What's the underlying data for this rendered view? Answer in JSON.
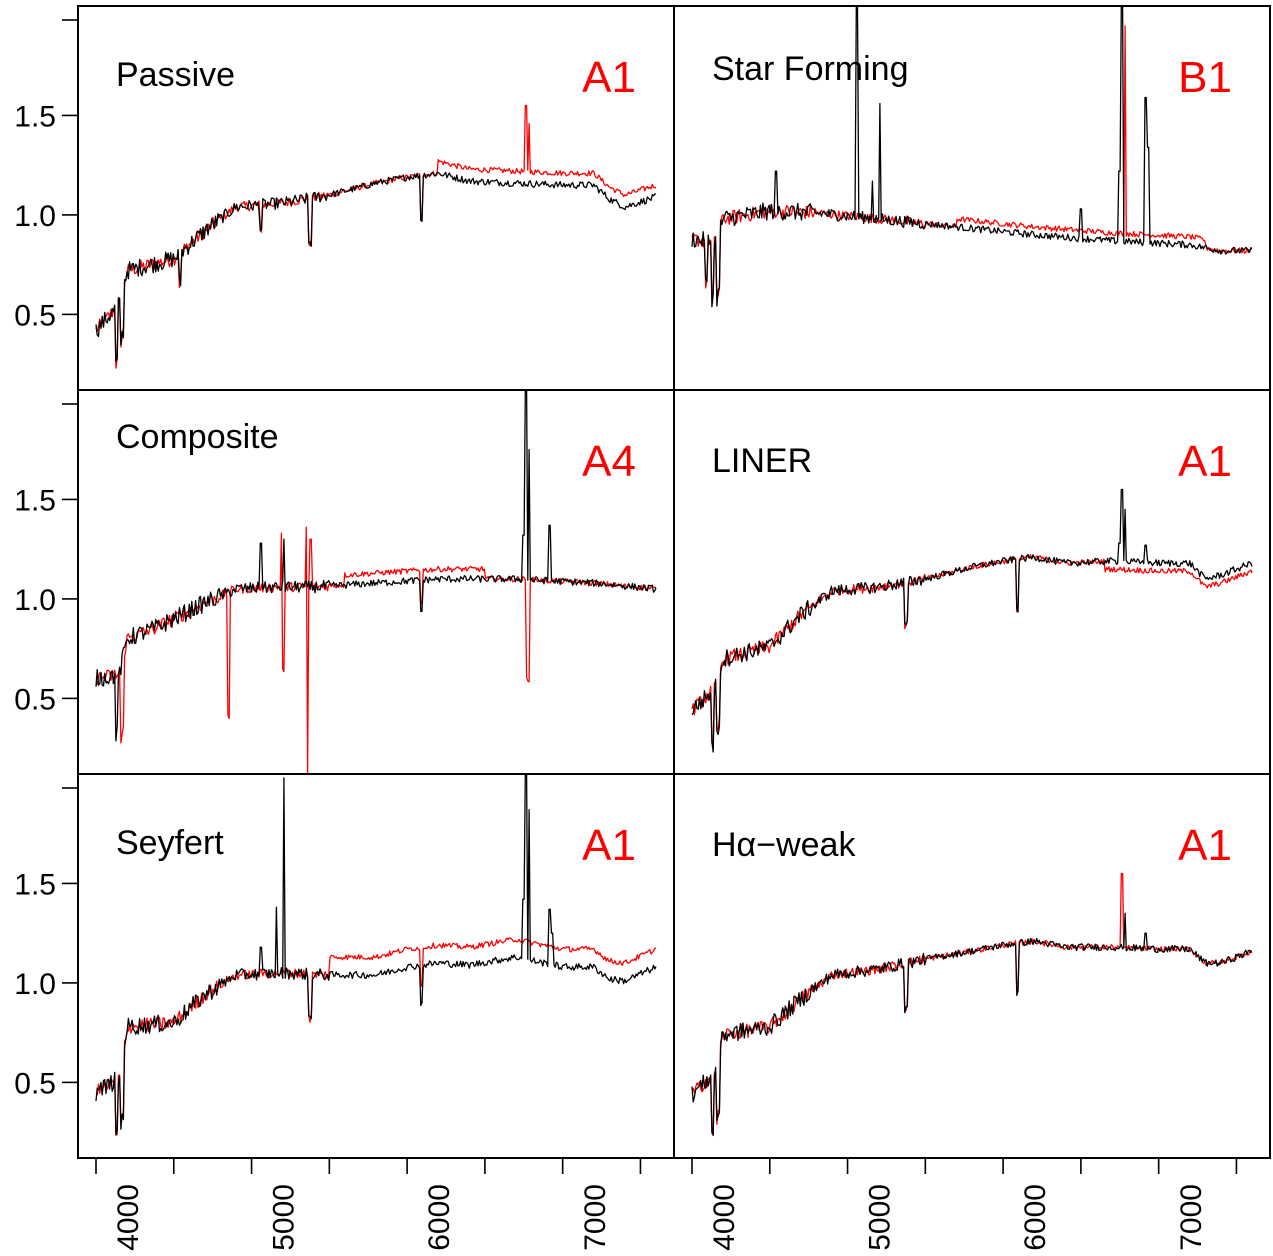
{
  "colors": {
    "model": "#ff0000",
    "observed": "#000000",
    "label_accent": "#ff0000",
    "axis": "#000000"
  },
  "x_ticks": [
    4000,
    5000,
    6000,
    7000
  ],
  "y_ticks": [
    "0.5",
    "1.0",
    "1.5"
  ],
  "chart_data": [
    {
      "type": "line",
      "title": "Passive",
      "tag": "A1",
      "xlim": [
        3800,
        7400
      ],
      "ylim": [
        0.12,
        2.05
      ],
      "continuum": {
        "x": [
          3800,
          3950,
          4000,
          4300,
          4500,
          4700,
          5000,
          5300,
          5600,
          5800,
          6000,
          6200,
          6500,
          6800,
          7000,
          7100,
          7200,
          7400
        ],
        "y": [
          0.42,
          0.55,
          0.72,
          0.78,
          0.92,
          1.04,
          1.06,
          1.1,
          1.16,
          1.19,
          1.21,
          1.17,
          1.16,
          1.15,
          1.15,
          1.08,
          1.04,
          1.09
        ]
      },
      "model_offset": [
        [
          6000,
          7400,
          0.06
        ]
      ],
      "lines": [
        {
          "x": 6563,
          "y": 1.55,
          "c": "model"
        },
        {
          "x": 6585,
          "y": 1.46,
          "c": "model"
        }
      ],
      "dips": [
        {
          "x": 3934,
          "d": 0.28
        },
        {
          "x": 3969,
          "d": 0.22
        },
        {
          "x": 4340,
          "d": 0.15
        },
        {
          "x": 4861,
          "d": 0.12
        },
        {
          "x": 5175,
          "d": 0.22
        },
        {
          "x": 5890,
          "d": 0.22
        }
      ]
    },
    {
      "type": "line",
      "title": "Star Forming",
      "tag": "B1",
      "xlim": [
        3800,
        7400
      ],
      "ylim": [
        0.12,
        2.05
      ],
      "continuum": {
        "x": [
          3800,
          3950,
          4000,
          4300,
          4600,
          5000,
          5500,
          6000,
          6500,
          7000,
          7200,
          7400
        ],
        "y": [
          0.88,
          0.86,
          0.98,
          1.02,
          1.01,
          0.98,
          0.94,
          0.9,
          0.87,
          0.85,
          0.82,
          0.82
        ]
      },
      "model_offset": [
        [
          5500,
          7100,
          0.04
        ]
      ],
      "lines": [
        {
          "x": 4340,
          "y": 1.22,
          "c": "observed"
        },
        {
          "x": 4861,
          "y": 2.05,
          "c": "observed"
        },
        {
          "x": 4959,
          "y": 1.17,
          "c": "observed"
        },
        {
          "x": 5007,
          "y": 1.56,
          "c": "observed"
        },
        {
          "x": 6300,
          "y": 1.03,
          "c": "observed"
        },
        {
          "x": 6548,
          "y": 1.22,
          "c": "observed"
        },
        {
          "x": 6563,
          "y": 2.05,
          "c": "observed"
        },
        {
          "x": 6583,
          "y": 1.95,
          "c": "model"
        },
        {
          "x": 6716,
          "y": 1.59,
          "c": "observed"
        },
        {
          "x": 6731,
          "y": 1.34,
          "c": "observed"
        }
      ],
      "dips": [
        {
          "x": 3890,
          "d": 0.22
        },
        {
          "x": 3934,
          "d": 0.28
        },
        {
          "x": 3969,
          "d": 0.3
        }
      ]
    },
    {
      "type": "line",
      "title": "Composite",
      "tag": "A4",
      "xlim": [
        3800,
        7400
      ],
      "ylim": [
        0.12,
        2.05
      ],
      "continuum": {
        "x": [
          3800,
          3950,
          4000,
          4200,
          4500,
          4700,
          5000,
          5200,
          5600,
          6000,
          6500,
          7000,
          7400
        ],
        "y": [
          0.6,
          0.62,
          0.8,
          0.86,
          0.98,
          1.05,
          1.06,
          1.06,
          1.08,
          1.1,
          1.1,
          1.08,
          1.05
        ]
      },
      "model_offset": [
        [
          5400,
          6300,
          0.05
        ]
      ],
      "lines": [
        {
          "x": 4861,
          "y": 1.28,
          "c": "observed"
        },
        {
          "x": 4990,
          "y": 1.33,
          "c": "model"
        },
        {
          "x": 5007,
          "y": 1.3,
          "c": "observed"
        },
        {
          "x": 5150,
          "y": 1.36,
          "c": "model"
        },
        {
          "x": 5180,
          "y": 1.3,
          "c": "model"
        },
        {
          "x": 6548,
          "y": 1.32,
          "c": "observed"
        },
        {
          "x": 6563,
          "y": 2.05,
          "c": "observed"
        },
        {
          "x": 6583,
          "y": 1.75,
          "c": "observed"
        },
        {
          "x": 6716,
          "y": 1.37,
          "c": "observed"
        }
      ],
      "dips": [
        {
          "x": 3934,
          "d": 0.3,
          "c": "observed"
        },
        {
          "x": 3969,
          "d": 0.38,
          "c": "model"
        },
        {
          "x": 4650,
          "d": 0.62,
          "c": "model"
        },
        {
          "x": 5000,
          "d": 0.42,
          "c": "model"
        },
        {
          "x": 5155,
          "d": 0.95,
          "c": "model"
        },
        {
          "x": 5180,
          "d": 0.88,
          "c": "model"
        },
        {
          "x": 5890,
          "d": 0.16
        },
        {
          "x": 6575,
          "d": 0.5,
          "c": "model"
        }
      ]
    },
    {
      "type": "line",
      "title": "LINER",
      "tag": "A1",
      "xlim": [
        3800,
        7400
      ],
      "ylim": [
        0.12,
        2.05
      ],
      "continuum": {
        "x": [
          3800,
          3950,
          4000,
          4300,
          4500,
          4700,
          5000,
          5300,
          5600,
          5800,
          6000,
          6200,
          6500,
          6800,
          7000,
          7100,
          7200,
          7400
        ],
        "y": [
          0.44,
          0.55,
          0.7,
          0.76,
          0.92,
          1.04,
          1.06,
          1.1,
          1.16,
          1.19,
          1.21,
          1.18,
          1.19,
          1.18,
          1.18,
          1.1,
          1.12,
          1.18
        ]
      },
      "model_offset": [
        [
          6450,
          7400,
          -0.04
        ]
      ],
      "lines": [
        {
          "x": 6548,
          "y": 1.28,
          "c": "observed"
        },
        {
          "x": 6563,
          "y": 1.55,
          "c": "observed"
        },
        {
          "x": 6583,
          "y": 1.45,
          "c": "observed"
        },
        {
          "x": 6716,
          "y": 1.27,
          "c": "observed"
        }
      ],
      "dips": [
        {
          "x": 3934,
          "d": 0.28
        },
        {
          "x": 3969,
          "d": 0.25
        },
        {
          "x": 5175,
          "d": 0.22
        },
        {
          "x": 5890,
          "d": 0.25
        }
      ]
    },
    {
      "type": "line",
      "title": "Seyfert",
      "tag": "A1",
      "xlim": [
        3800,
        7400
      ],
      "ylim": [
        0.12,
        2.05
      ],
      "continuum": {
        "x": [
          3800,
          3950,
          4000,
          4300,
          4500,
          4700,
          5000,
          5300,
          5600,
          5800,
          6000,
          6200,
          6500,
          6800,
          7000,
          7100,
          7200,
          7400
        ],
        "y": [
          0.45,
          0.52,
          0.78,
          0.8,
          0.94,
          1.04,
          1.05,
          1.04,
          1.04,
          1.08,
          1.1,
          1.09,
          1.13,
          1.08,
          1.08,
          1.02,
          1.01,
          1.08
        ]
      },
      "model_offset": [
        [
          5300,
          7400,
          0.09
        ]
      ],
      "lines": [
        {
          "x": 4861,
          "y": 1.18,
          "c": "observed"
        },
        {
          "x": 4959,
          "y": 1.38,
          "c": "observed"
        },
        {
          "x": 5007,
          "y": 2.03,
          "c": "observed"
        },
        {
          "x": 6548,
          "y": 1.42,
          "c": "observed"
        },
        {
          "x": 6563,
          "y": 2.05,
          "c": "observed"
        },
        {
          "x": 6583,
          "y": 1.87,
          "c": "observed"
        },
        {
          "x": 6716,
          "y": 1.37,
          "c": "observed"
        },
        {
          "x": 6731,
          "y": 1.25,
          "c": "observed"
        }
      ],
      "dips": [
        {
          "x": 3934,
          "d": 0.28
        },
        {
          "x": 3969,
          "d": 0.3
        },
        {
          "x": 5175,
          "d": 0.22
        },
        {
          "x": 5890,
          "d": 0.2
        }
      ]
    },
    {
      "type": "line",
      "title": "Hα−weak",
      "tag": "A1",
      "xlim": [
        3800,
        7400
      ],
      "ylim": [
        0.12,
        2.05
      ],
      "continuum": {
        "x": [
          3800,
          3950,
          4000,
          4300,
          4500,
          4700,
          5000,
          5300,
          5600,
          5800,
          6000,
          6200,
          6500,
          6800,
          7000,
          7100,
          7200,
          7400
        ],
        "y": [
          0.44,
          0.55,
          0.74,
          0.78,
          0.92,
          1.04,
          1.07,
          1.12,
          1.16,
          1.19,
          1.21,
          1.18,
          1.18,
          1.17,
          1.17,
          1.1,
          1.1,
          1.16
        ]
      },
      "model_offset": [],
      "lines": [
        {
          "x": 6563,
          "y": 1.55,
          "c": "model"
        },
        {
          "x": 6585,
          "y": 1.35,
          "c": "observed"
        },
        {
          "x": 6716,
          "y": 1.25,
          "c": "observed"
        }
      ],
      "dips": [
        {
          "x": 3934,
          "d": 0.3
        },
        {
          "x": 3969,
          "d": 0.28
        },
        {
          "x": 5175,
          "d": 0.22
        },
        {
          "x": 5890,
          "d": 0.25
        }
      ]
    }
  ]
}
